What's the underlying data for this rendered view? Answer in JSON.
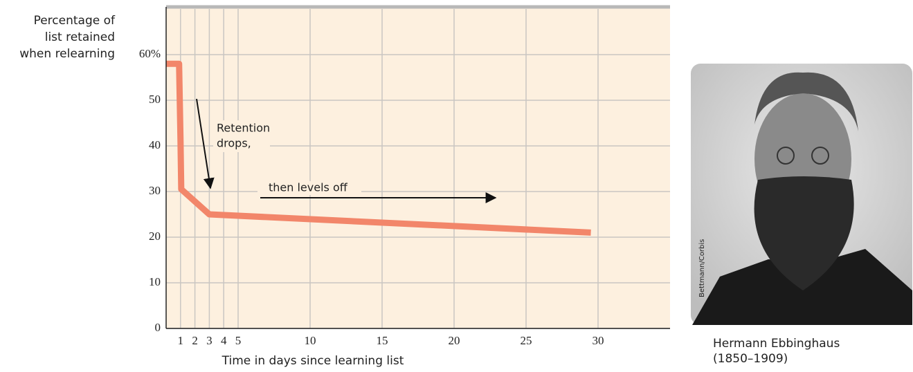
{
  "chart_data": {
    "type": "line",
    "xlabel": "Time in days since learning list",
    "ylabel": [
      "Percentage of",
      "list retained",
      "when relearning"
    ],
    "x": [
      0,
      0.9,
      1,
      1.05,
      3,
      29.5
    ],
    "series": [
      {
        "name": "Retention",
        "color": "#f2866a",
        "values": [
          58,
          58,
          41,
          30.5,
          25,
          21
        ]
      }
    ],
    "xlim": [
      0,
      35
    ],
    "xticks": [
      1,
      2,
      3,
      4,
      5,
      10,
      15,
      20,
      25,
      30
    ],
    "ylim": [
      0,
      70
    ],
    "yticks": [
      0,
      10,
      20,
      30,
      40,
      50,
      {
        "value": 60,
        "label": "60%"
      }
    ],
    "grid": true,
    "annotations": [
      {
        "lines": [
          "Retention",
          "drops,"
        ]
      },
      {
        "lines": [
          "then levels off"
        ]
      }
    ]
  },
  "photo": {
    "caption": [
      "Hermann Ebbinghaus",
      "(1850–1909)"
    ],
    "credit": "Bettmann/Corbis"
  }
}
